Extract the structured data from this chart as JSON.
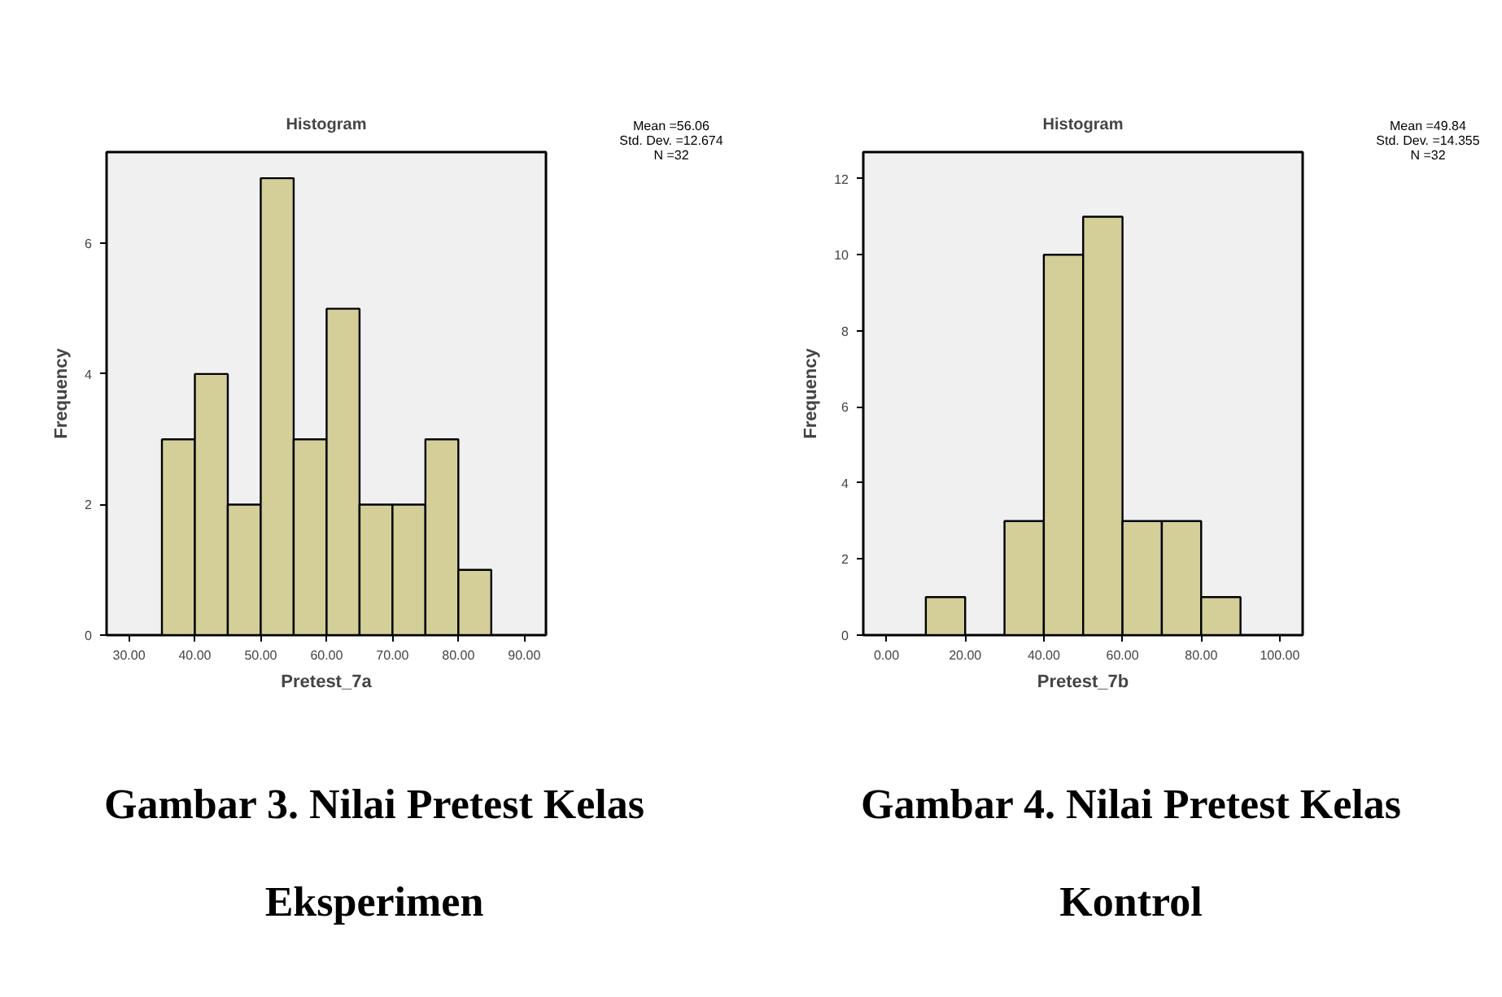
{
  "chart_data": [
    {
      "type": "histogram",
      "title": "Histogram",
      "xlabel": "Pretest_7a",
      "ylabel": "Frequency",
      "bins": [
        35,
        40,
        45,
        50,
        55,
        60,
        65,
        70,
        75,
        80,
        85
      ],
      "values": [
        3,
        4,
        2,
        7,
        3,
        5,
        2,
        2,
        3,
        1
      ],
      "color": "#d4cf99",
      "xlim": [
        26.6,
        93.3
      ],
      "ylim": [
        0,
        7.4
      ],
      "xticks": [
        {
          "value": 30,
          "label": "30.00"
        },
        {
          "value": 40,
          "label": "40.00"
        },
        {
          "value": 50,
          "label": "50.00"
        },
        {
          "value": 60,
          "label": "60.00"
        },
        {
          "value": 70,
          "label": "70.00"
        },
        {
          "value": 80,
          "label": "80.00"
        },
        {
          "value": 90,
          "label": "90.00"
        }
      ],
      "yticks": [
        0,
        2,
        4,
        6
      ],
      "grid": false,
      "annotations": [
        "Mean =56.06",
        "Std. Dev. =12.674",
        "N =32",
        "Gambar 3. Nilai Pretest Kelas Eksperimen"
      ]
    },
    {
      "type": "histogram",
      "title": "Histogram",
      "xlabel": "Pretest_7b",
      "ylabel": "Frequency",
      "bins": [
        10,
        20,
        30,
        40,
        50,
        60,
        70,
        80,
        90
      ],
      "values": [
        1,
        0,
        3,
        10,
        11,
        3,
        3,
        1
      ],
      "color": "#d4cf99",
      "xlim": [
        -5.9,
        105.8
      ],
      "ylim": [
        0,
        12.7
      ],
      "xticks": [
        {
          "value": 0,
          "label": "0.00"
        },
        {
          "value": 20,
          "label": "20.00"
        },
        {
          "value": 40,
          "label": "40.00"
        },
        {
          "value": 60,
          "label": "60.00"
        },
        {
          "value": 80,
          "label": "80.00"
        },
        {
          "value": 100,
          "label": "100.00"
        }
      ],
      "yticks": [
        0,
        2,
        4,
        6,
        8,
        10,
        12
      ],
      "grid": false,
      "annotations": [
        "Mean =49.84",
        "Std. Dev. =14.355",
        "N =32",
        "Gambar 4. Nilai Pretest Kelas Kontrol"
      ]
    }
  ]
}
